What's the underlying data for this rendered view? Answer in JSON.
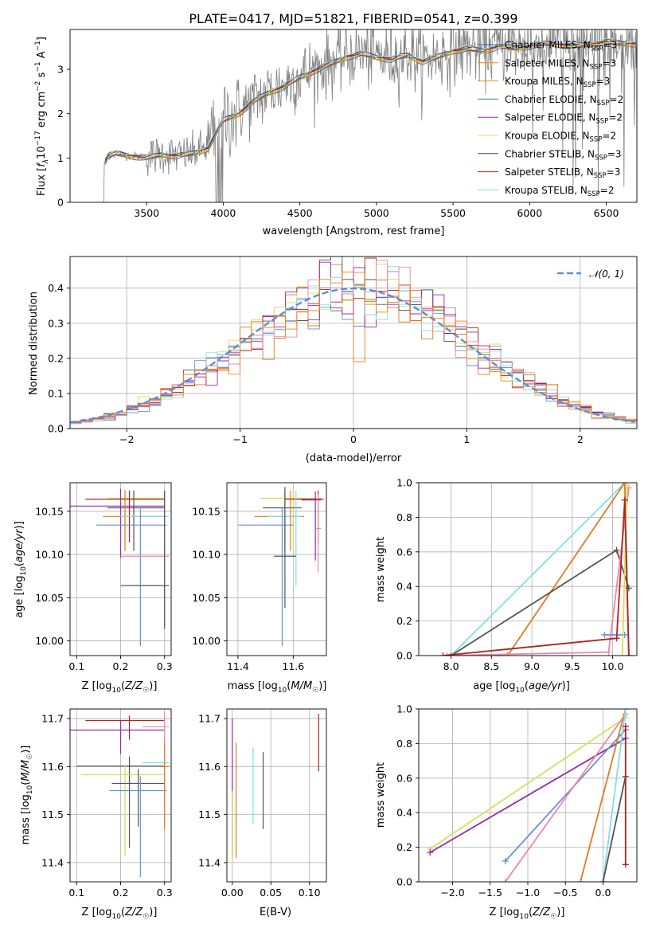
{
  "chart_data": [
    {
      "id": "spectrum",
      "type": "line",
      "title": "PLATE=0417, MJD=51821, FIBERID=0541, z=0.399",
      "xlabel": "wavelength [Angstrom, rest frame]",
      "ylabel": "Flux [f$_\\lambda$10$^{-17}$ erg cm$^{-2}$ s$^{-1}$ A$^{-1}$]",
      "xlim": [
        3000,
        6700
      ],
      "ylim": [
        0,
        3.9
      ],
      "xticks": [
        "3500",
        "4000",
        "4500",
        "5000",
        "5500",
        "6000",
        "6500"
      ],
      "yticks": [
        "0",
        "1",
        "2",
        "3"
      ],
      "grid": false,
      "legend_position": "upper-right",
      "legend": [
        {
          "label": "Chabrier MILES, N$_{SSP}$=3",
          "color": "#1f77b4"
        },
        {
          "label": "Salpeter MILES, N$_{SSP}$=3",
          "color": "#ff7f0e"
        },
        {
          "label": "Kroupa MILES, N$_{SSP}$=3",
          "color": "#d4a017"
        },
        {
          "label": "Chabrier ELODIE, N$_{SSP}$=2",
          "color": "#2e8b57"
        },
        {
          "label": "Salpeter ELODIE, N$_{SSP}$=2",
          "color": "#9c27b0"
        },
        {
          "label": "Kroupa ELODIE, N$_{SSP}$=2",
          "color": "#d4e157"
        },
        {
          "label": "Chabrier STELIB, N$_{SSP}$=3",
          "color": "#444444"
        },
        {
          "label": "Salpeter STELIB, N$_{SSP}$=3",
          "color": "#b22222"
        },
        {
          "label": "Kroupa STELIB, N$_{SSP}$=2",
          "color": "#80deea"
        }
      ],
      "data_color": "#808080",
      "data_x": [
        3220,
        3250,
        3300,
        3400,
        3500,
        3600,
        3700,
        3800,
        3900,
        4000,
        4100,
        4200,
        4300,
        4400,
        4500,
        4600,
        4700,
        4800,
        4900,
        5000,
        5100,
        5200,
        5300,
        5400,
        5500,
        5600,
        5700,
        5800,
        5900,
        6000,
        6100,
        6200,
        6300,
        6400,
        6500,
        6600
      ],
      "data_y": [
        0.85,
        1.05,
        1.1,
        1.05,
        1.02,
        1.1,
        1.05,
        1.1,
        1.25,
        1.9,
        2.05,
        2.3,
        2.5,
        2.65,
        2.85,
        3.0,
        3.15,
        3.3,
        3.38,
        3.3,
        3.25,
        3.35,
        3.2,
        3.3,
        3.45,
        3.5,
        3.45,
        3.55,
        3.5,
        3.55,
        3.6,
        3.6,
        3.55,
        3.6,
        3.65,
        3.6
      ],
      "model_y": [
        0.85,
        1.05,
        1.1,
        1.05,
        1.0,
        1.08,
        1.05,
        1.1,
        1.22,
        1.85,
        2.0,
        2.28,
        2.48,
        2.62,
        2.82,
        2.98,
        3.12,
        3.28,
        3.35,
        3.28,
        3.22,
        3.32,
        3.18,
        3.28,
        3.42,
        3.46,
        3.42,
        3.52,
        3.48,
        3.52,
        3.58,
        3.56,
        3.52,
        3.57,
        3.62,
        3.58
      ],
      "model_colors": [
        "#1f77b4",
        "#ff7f0e",
        "#d4a017",
        "#2e8b57",
        "#9c27b0",
        "#d4e157",
        "#444444",
        "#b22222",
        "#80deea"
      ]
    },
    {
      "id": "residuals",
      "type": "line",
      "xlabel": "(data-model)/error",
      "ylabel": "Normed distribution",
      "xlim": [
        -2.5,
        2.5
      ],
      "ylim": [
        0,
        0.49
      ],
      "xticks": [
        "−2",
        "−1",
        "0",
        "1",
        "2"
      ],
      "yticks": [
        "0.0",
        "0.1",
        "0.2",
        "0.3",
        "0.4"
      ],
      "grid": true,
      "legend_position": "upper-right",
      "legend": [
        {
          "label": "$\\mathcal{N}(0,1)$",
          "color": "#5b8fd6"
        }
      ],
      "reference": {
        "name": "$\\mathcal{N}(0,1)$",
        "mu": 0,
        "sigma": 1,
        "color": "#5b8fd6"
      },
      "hist_colors": [
        "#6a8fd6",
        "#e07b24",
        "#d4e157",
        "#555555",
        "#9c27b0",
        "#b22222",
        "#80deea",
        "#e88aa8",
        "#ff7f0e"
      ],
      "bin_width": 0.1
    },
    {
      "id": "age-vs-z",
      "type": "scatter",
      "xlabel": "Z [log$_{10}$($Z/Z_\\odot$)]",
      "ylabel": "age  [log$_{10}$($age/yr$)]",
      "xlim": [
        0.085,
        0.315
      ],
      "ylim": [
        9.983,
        10.183
      ],
      "xticks": [
        "0.1",
        "0.2",
        "0.3"
      ],
      "yticks": [
        "10.00",
        "10.05",
        "10.10",
        "10.15"
      ],
      "grid": true,
      "points": [
        {
          "x": 0.21,
          "y": 10.165,
          "xerr": [
            0.04,
            0.09
          ],
          "yerr": [
            0.06,
            0.01
          ],
          "color": "#d4e157"
        },
        {
          "x": 0.22,
          "y": 10.164,
          "xerr": [
            0.1,
            0.08
          ],
          "yerr": [
            0.05,
            0.01
          ],
          "color": "#b22222"
        },
        {
          "x": 0.2,
          "y": 10.156,
          "xerr": [
            0.19,
            0.1
          ],
          "yerr": [
            0.06,
            0.02
          ],
          "color": "#9c27b0"
        },
        {
          "x": 0.23,
          "y": 10.154,
          "xerr": [
            0.06,
            0.07
          ],
          "yerr": [
            0.05,
            0.02
          ],
          "color": "#555555"
        },
        {
          "x": 0.21,
          "y": 10.144,
          "xerr": [
            0.05,
            0.09
          ],
          "yerr": [
            0.04,
            0.03
          ],
          "color": "#e07b24"
        },
        {
          "x": 0.3,
          "y": 10.144,
          "xerr": [
            0.1,
            0.01
          ],
          "yerr": [
            0.07,
            0.03
          ],
          "color": "#80deea"
        },
        {
          "x": 0.245,
          "y": 10.134,
          "xerr": [
            0.1,
            0.06
          ],
          "yerr": [
            0.14,
            0.02
          ],
          "color": "#6a8fd6"
        },
        {
          "x": 0.3,
          "y": 10.098,
          "xerr": [
            0.1,
            0.01
          ],
          "yerr": [
            0.08,
            0.07
          ],
          "color": "#e88aa8"
        },
        {
          "x": 0.3,
          "y": 10.064,
          "xerr": [
            0.1,
            0.01
          ],
          "yerr": [
            0.05,
            0.11
          ],
          "color": "#555555"
        }
      ]
    },
    {
      "id": "age-vs-mass",
      "type": "scatter",
      "xlabel": "mass [log$_{10}$($M/M_\\odot$)]",
      "ylabel": "",
      "xlim": [
        11.36,
        11.72
      ],
      "ylim": [
        9.983,
        10.183
      ],
      "xticks": [
        "11.4",
        "11.6"
      ],
      "yticks": [
        "10.00",
        "10.05",
        "10.10",
        "10.15"
      ],
      "grid": true,
      "points": [
        {
          "x": 11.6,
          "y": 10.165,
          "xerr": [
            0.12,
            0.1
          ],
          "yerr": [
            0.06,
            0.01
          ],
          "color": "#d4e157"
        },
        {
          "x": 11.69,
          "y": 10.164,
          "xerr": [
            0.12,
            0.02
          ],
          "yerr": [
            0.05,
            0.01
          ],
          "color": "#b22222"
        },
        {
          "x": 11.68,
          "y": 10.163,
          "xerr": [
            0.05,
            0.02
          ],
          "yerr": [
            0.07,
            0.01
          ],
          "color": "#9c27b0"
        },
        {
          "x": 11.57,
          "y": 10.154,
          "xerr": [
            0.08,
            0.06
          ],
          "yerr": [
            0.05,
            0.02
          ],
          "color": "#555555"
        },
        {
          "x": 11.59,
          "y": 10.144,
          "xerr": [
            0.13,
            0.05
          ],
          "yerr": [
            0.04,
            0.03
          ],
          "color": "#e07b24"
        },
        {
          "x": 11.61,
          "y": 10.144,
          "xerr": [
            0.1,
            0.02
          ],
          "yerr": [
            0.08,
            0.03
          ],
          "color": "#80deea"
        },
        {
          "x": 11.56,
          "y": 10.134,
          "xerr": [
            0.16,
            0.04
          ],
          "yerr": [
            0.14,
            0.02
          ],
          "color": "#6a8fd6"
        },
        {
          "x": 11.69,
          "y": 10.13,
          "xerr": [
            0.01,
            0.01
          ],
          "yerr": [
            0.05,
            0.04
          ],
          "color": "#e88aa8"
        },
        {
          "x": 11.57,
          "y": 10.098,
          "xerr": [
            0.04,
            0.04
          ],
          "yerr": [
            0.06,
            0.08
          ],
          "color": "#555555"
        }
      ]
    },
    {
      "id": "massweight-vs-age",
      "type": "line",
      "xlabel": "age  [log$_{10}$($age/yr$)]",
      "ylabel": "mass weight",
      "xlim": [
        7.6,
        10.3
      ],
      "ylim": [
        0,
        1.0
      ],
      "xticks": [
        "8.0",
        "8.5",
        "9.0",
        "9.5",
        "10.0"
      ],
      "yticks": [
        "0.0",
        "0.2",
        "0.4",
        "0.6",
        "0.8",
        "1.0"
      ],
      "grid": true,
      "series": [
        {
          "color": "#80deea",
          "x": [
            8.0,
            10.15,
            10.2
          ],
          "y": [
            0.0,
            1.0,
            0.0
          ]
        },
        {
          "color": "#e07b24",
          "x": [
            8.7,
            10.15,
            10.2
          ],
          "y": [
            0.0,
            1.0,
            0.0
          ]
        },
        {
          "color": "#555555",
          "x": [
            8.0,
            10.05,
            10.2
          ],
          "y": [
            0.0,
            0.61,
            0.39
          ]
        },
        {
          "color": "#e88aa8",
          "x": [
            7.95,
            9.95,
            10.2
          ],
          "y": [
            0.0,
            0.02,
            0.97
          ]
        },
        {
          "color": "#6a8fd6",
          "x": [
            9.9,
            10.15
          ],
          "y": [
            0.12,
            0.12
          ]
        },
        {
          "color": "#d4e157",
          "x": [
            10.12,
            10.18
          ],
          "y": [
            0.0,
            1.0
          ]
        },
        {
          "color": "#b22222",
          "x": [
            7.9,
            10.05,
            10.15,
            10.2
          ],
          "y": [
            0.0,
            0.1,
            0.9,
            0.0
          ]
        }
      ]
    },
    {
      "id": "mass-vs-z",
      "type": "scatter",
      "xlabel": "Z [log$_{10}$($Z/Z_\\odot$)]",
      "ylabel": "mass [log$_{10}$($M/M_\\odot$)]",
      "xlim": [
        0.085,
        0.315
      ],
      "ylim": [
        11.36,
        11.72
      ],
      "xticks": [
        "0.1",
        "0.2",
        "0.3"
      ],
      "yticks": [
        "11.4",
        "11.5",
        "11.6",
        "11.7"
      ],
      "grid": true,
      "points": [
        {
          "x": 0.22,
          "y": 11.696,
          "xerr": [
            0.1,
            0.08
          ],
          "yerr": [
            0.04,
            0.01
          ],
          "color": "#b22222"
        },
        {
          "x": 0.2,
          "y": 11.676,
          "xerr": [
            0.19,
            0.1
          ],
          "yerr": [
            0.05,
            0.02
          ],
          "color": "#9c27b0"
        },
        {
          "x": 0.3,
          "y": 11.683,
          "xerr": [
            0.05,
            0.01
          ],
          "yerr": [
            0.2,
            0.03
          ],
          "color": "#e88aa8"
        },
        {
          "x": 0.3,
          "y": 11.608,
          "xerr": [
            0.05,
            0.01
          ],
          "yerr": [
            0.12,
            0.04
          ],
          "color": "#80deea"
        },
        {
          "x": 0.22,
          "y": 11.601,
          "xerr": [
            0.12,
            0.08
          ],
          "yerr": [
            0.17,
            0.02
          ],
          "color": "#555555"
        },
        {
          "x": 0.21,
          "y": 11.583,
          "xerr": [
            0.1,
            0.09
          ],
          "yerr": [
            0.17,
            0.02
          ],
          "color": "#d4e157"
        },
        {
          "x": 0.24,
          "y": 11.565,
          "xerr": [
            0.06,
            0.06
          ],
          "yerr": [
            0.09,
            0.03
          ],
          "color": "#555555"
        },
        {
          "x": 0.245,
          "y": 11.55,
          "xerr": [
            0.07,
            0.06
          ],
          "yerr": [
            0.18,
            0.03
          ],
          "color": "#6a8fd6"
        },
        {
          "x": 0.3,
          "y": 11.6,
          "xerr": [
            0.01,
            0.01
          ],
          "yerr": [
            0.13,
            0.05
          ],
          "color": "#e07b24"
        }
      ]
    },
    {
      "id": "mass-vs-ebv",
      "type": "scatter",
      "xlabel": "E(B-V)",
      "ylabel": "",
      "xlim": [
        -0.007,
        0.122
      ],
      "ylim": [
        11.36,
        11.72
      ],
      "xticks": [
        "0.00",
        "0.05",
        "0.10"
      ],
      "yticks": [
        "11.4",
        "11.5",
        "11.6",
        "11.7"
      ],
      "grid": true,
      "points": [
        {
          "x": 0.0,
          "y": 11.59,
          "xerr": [
            0,
            0
          ],
          "yerr": [
            0.18,
            0.11
          ],
          "color": "#9c27b0"
        },
        {
          "x": 0.005,
          "y": 11.56,
          "xerr": [
            0,
            0
          ],
          "yerr": [
            0.15,
            0.09
          ],
          "color": "#e07b24"
        },
        {
          "x": 0.0,
          "y": 11.5,
          "xerr": [
            0,
            0
          ],
          "yerr": [
            0.1,
            0.05
          ],
          "color": "#d4e157"
        },
        {
          "x": 0.027,
          "y": 11.56,
          "xerr": [
            0,
            0
          ],
          "yerr": [
            0.08,
            0.08
          ],
          "color": "#80deea"
        },
        {
          "x": 0.04,
          "y": 11.55,
          "xerr": [
            0,
            0
          ],
          "yerr": [
            0.08,
            0.08
          ],
          "color": "#555555"
        },
        {
          "x": 0.112,
          "y": 11.65,
          "xerr": [
            0,
            0
          ],
          "yerr": [
            0.06,
            0.06
          ],
          "color": "#b22222"
        }
      ]
    },
    {
      "id": "massweight-vs-z",
      "type": "line",
      "xlabel": "Z [log$_{10}$($Z/Z_\\odot$)]",
      "ylabel": "mass weight",
      "xlim": [
        -2.45,
        0.45
      ],
      "ylim": [
        0,
        1.0
      ],
      "xticks": [
        "−2.0",
        "−1.5",
        "−1.0",
        "−0.5",
        "0.0"
      ],
      "yticks": [
        "0.0",
        "0.2",
        "0.4",
        "0.6",
        "0.8",
        "1.0"
      ],
      "grid": true,
      "series": [
        {
          "color": "#d4e157",
          "x": [
            -2.3,
            0.3
          ],
          "y": [
            0.19,
            0.95
          ]
        },
        {
          "color": "#9c27b0",
          "x": [
            -2.3,
            0.3
          ],
          "y": [
            0.17,
            0.83
          ]
        },
        {
          "color": "#6a8fd6",
          "x": [
            -1.3,
            0.3
          ],
          "y": [
            0.12,
            0.88
          ]
        },
        {
          "color": "#e88aa8",
          "x": [
            -1.3,
            0.3
          ],
          "y": [
            0.0,
            0.97
          ]
        },
        {
          "color": "#e07b24",
          "x": [
            -0.3,
            0.3
          ],
          "y": [
            0.0,
            1.0
          ]
        },
        {
          "color": "#80deea",
          "x": [
            0.0,
            0.3
          ],
          "y": [
            0.0,
            1.0
          ]
        },
        {
          "color": "#555555",
          "x": [
            0.0,
            0.3
          ],
          "y": [
            0.0,
            0.61
          ]
        },
        {
          "color": "#b22222",
          "x": [
            0.3,
            0.3
          ],
          "y": [
            0.1,
            0.9
          ]
        }
      ]
    }
  ]
}
